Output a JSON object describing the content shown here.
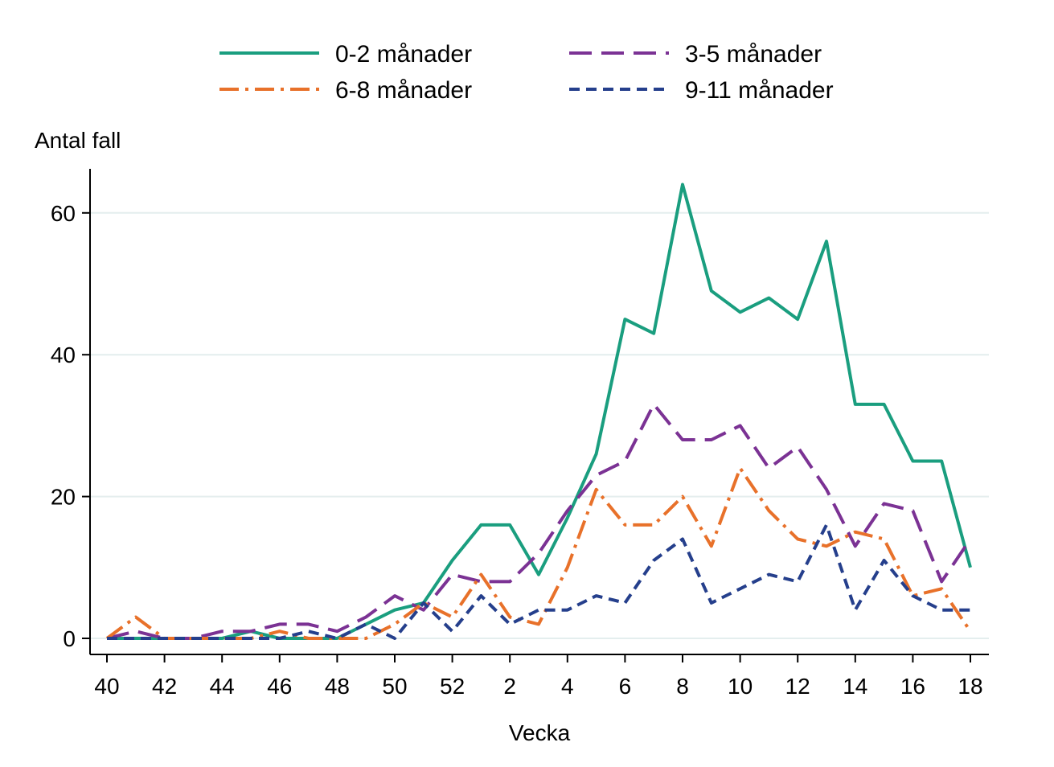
{
  "chart_data": {
    "type": "line",
    "title": "",
    "xlabel": "Vecka",
    "ylabel": "Antal fall",
    "ylim": [
      0,
      66
    ],
    "yticks": [
      0,
      20,
      40,
      60
    ],
    "grid": true,
    "legend_position": "top",
    "x": [
      "40",
      "41",
      "42",
      "43",
      "44",
      "45",
      "46",
      "47",
      "48",
      "49",
      "50",
      "51",
      "52",
      "1",
      "2",
      "3",
      "4",
      "5",
      "6",
      "7",
      "8",
      "9",
      "10",
      "11",
      "12",
      "13",
      "14",
      "15",
      "16",
      "17",
      "18"
    ],
    "xtick_labels": [
      "40",
      "42",
      "44",
      "46",
      "48",
      "50",
      "52",
      "2",
      "4",
      "6",
      "8",
      "10",
      "12",
      "14",
      "16",
      "18"
    ],
    "series": [
      {
        "name": "0-2 månader",
        "color": "#1a9e7f",
        "style": "solid",
        "values": [
          0,
          0,
          0,
          0,
          0,
          1,
          0,
          0,
          0,
          2,
          4,
          5,
          11,
          16,
          16,
          9,
          17,
          26,
          45,
          43,
          64,
          49,
          46,
          48,
          45,
          56,
          33,
          33,
          25,
          25,
          10
        ]
      },
      {
        "name": "3-5 månader",
        "color": "#7b3294",
        "style": "longdash",
        "values": [
          0,
          1,
          0,
          0,
          1,
          1,
          2,
          2,
          1,
          3,
          6,
          4,
          9,
          8,
          8,
          12,
          18,
          23,
          25,
          33,
          28,
          28,
          30,
          24,
          27,
          21,
          13,
          19,
          18,
          8,
          14
        ]
      },
      {
        "name": "6-8 månader",
        "color": "#e8712a",
        "style": "dashdot",
        "values": [
          0,
          3,
          0,
          0,
          0,
          0,
          1,
          0,
          0,
          0,
          2,
          5,
          3,
          9,
          3,
          2,
          10,
          21,
          16,
          16,
          20,
          13,
          24,
          18,
          14,
          13,
          15,
          14,
          6,
          7,
          1
        ]
      },
      {
        "name": "9-11 månader",
        "color": "#253f8c",
        "style": "shortdash",
        "values": [
          0,
          0,
          0,
          0,
          0,
          0,
          0,
          1,
          0,
          2,
          0,
          5,
          1,
          6,
          2,
          4,
          4,
          6,
          5,
          11,
          14,
          5,
          7,
          9,
          8,
          16,
          4,
          11,
          6,
          4,
          4
        ]
      }
    ]
  }
}
